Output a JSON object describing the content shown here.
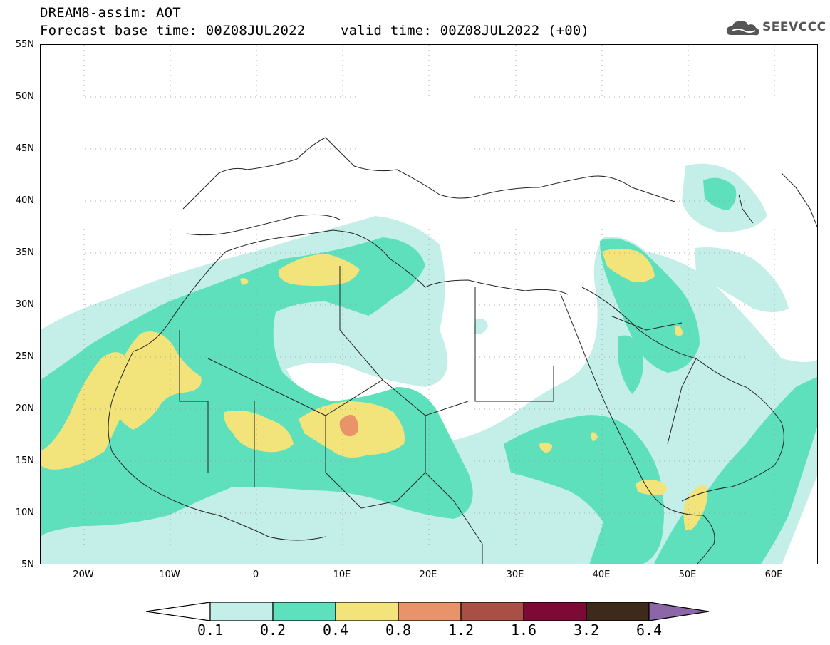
{
  "header": {
    "title": "DREAM8-assim: AOT",
    "forecast_base": "Forecast base time: 00Z08JUL2022",
    "valid_time": "valid time: 00Z08JUL2022 (+00)"
  },
  "logo": {
    "text": "SEEVCCC",
    "icon": "cloud-icon"
  },
  "map": {
    "lon_range": [
      -25,
      65
    ],
    "lat_range": [
      5,
      55
    ],
    "grid": "dotted",
    "lat_labels": [
      "55N",
      "50N",
      "45N",
      "40N",
      "35N",
      "30N",
      "25N",
      "20N",
      "15N",
      "10N",
      "5N"
    ],
    "lon_labels": [
      "20W",
      "10W",
      "0",
      "10E",
      "20E",
      "30E",
      "40E",
      "50E",
      "60E"
    ]
  },
  "colorbar": {
    "levels": [
      "0.1",
      "0.2",
      "0.4",
      "0.8",
      "1.2",
      "1.6",
      "3.2",
      "6.4"
    ],
    "colors": [
      "#ffffff",
      "#c4efe8",
      "#5ee0bd",
      "#f2e47a",
      "#e9936b",
      "#aa4f43",
      "#7d0a35",
      "#3d2a1a",
      "#8b67a8"
    ]
  }
}
